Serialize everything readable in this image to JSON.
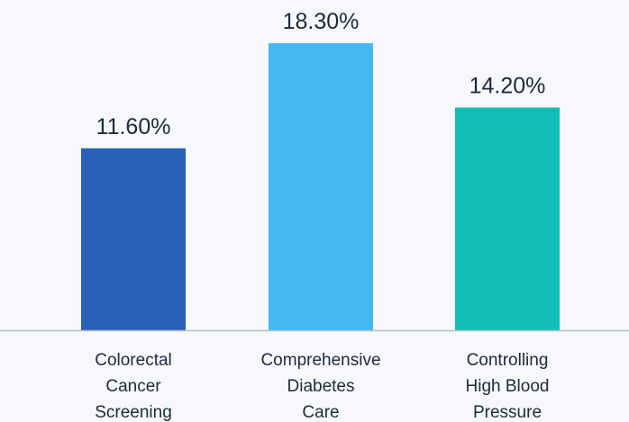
{
  "chart_data": {
    "type": "bar",
    "categories": [
      [
        "Colorectal",
        "Cancer",
        "Screening"
      ],
      [
        "Comprehensive",
        "Diabetes",
        "Care"
      ],
      [
        "Controlling",
        "High Blood",
        "Pressure"
      ]
    ],
    "values": [
      11.6,
      18.3,
      14.2
    ],
    "value_labels": [
      "11.60%",
      "18.30%",
      "14.20%"
    ],
    "bar_colors": [
      "#2a5fb8",
      "#44b9f0",
      "#13bdb7"
    ],
    "axis_color": "#b7bcc4",
    "text_color": "#1b2a3c",
    "ylim": [
      0,
      20
    ],
    "grid": false,
    "legend": "none",
    "title": "",
    "xlabel": "",
    "ylabel": ""
  }
}
